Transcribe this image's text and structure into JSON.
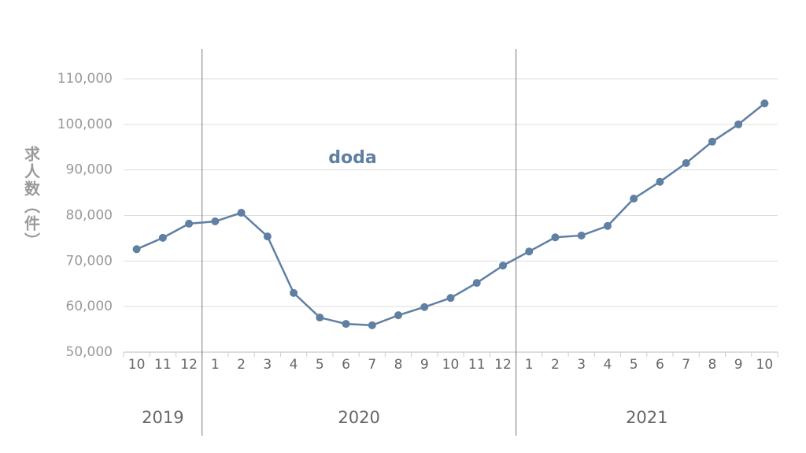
{
  "chart_data": {
    "type": "line",
    "y_label": "求人数（件）",
    "categories": [
      "10",
      "11",
      "12",
      "1",
      "2",
      "3",
      "4",
      "5",
      "6",
      "7",
      "8",
      "9",
      "10",
      "11",
      "12",
      "1",
      "2",
      "3",
      "4",
      "5",
      "6",
      "7",
      "8",
      "9",
      "10"
    ],
    "years": [
      "2019",
      "2020",
      "2021"
    ],
    "series": [
      {
        "name": "doda",
        "color": "#5f7fa3",
        "values": [
          72600,
          75100,
          78200,
          78700,
          80600,
          75400,
          63000,
          57600,
          56200,
          55900,
          58100,
          59900,
          61900,
          65200,
          69000,
          72100,
          75200,
          75600,
          77700,
          83700,
          87400,
          91500,
          96200,
          100000,
          104600
        ]
      }
    ],
    "ylim": [
      50000,
      110000
    ],
    "yticks": [
      {
        "value": 50000,
        "label": "50,000"
      },
      {
        "value": 60000,
        "label": "60,000"
      },
      {
        "value": 70000,
        "label": "70,000"
      },
      {
        "value": 80000,
        "label": "80,000"
      },
      {
        "value": 90000,
        "label": "90,000"
      },
      {
        "value": 100000,
        "label": "100,000"
      },
      {
        "value": 110000,
        "label": "110,000"
      }
    ],
    "grid": true
  }
}
